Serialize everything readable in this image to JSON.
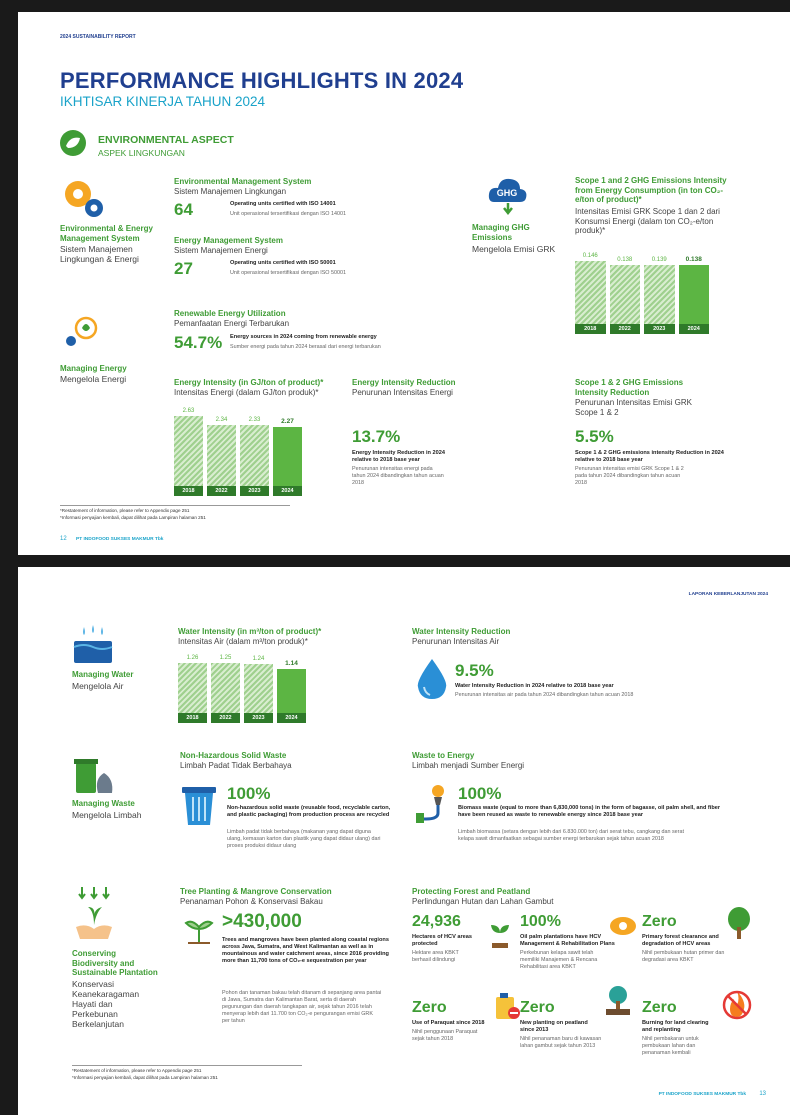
{
  "page1": {
    "header": "2024 SUSTAINABILITY REPORT",
    "title": "PERFORMANCE HIGHLIGHTS IN 2024",
    "subtitle": "IKHTISAR KINERJA TAHUN 2024",
    "section": {
      "title": "ENVIRONMENTAL ASPECT",
      "subtitle": "ASPEK LINGKUNGAN"
    },
    "ems_label": {
      "title": "Environmental & Energy Management System",
      "subtitle": "Sistem Manajemen Lingkungan & Energi"
    },
    "ems": {
      "title": "Environmental Management System",
      "subtitle": "Sistem Manajemen Lingkungan",
      "value": "64",
      "desc": "Operating units certified with ISO 14001",
      "desc_id": "Unit operasional tersertifikasi dengan ISO 14001"
    },
    "enms": {
      "title": "Energy Management System",
      "subtitle": "Sistem Manajemen Energi",
      "value": "27",
      "desc": "Operating units certified with ISO 50001",
      "desc_id": "Unit operasional tersertifikasi dengan ISO 50001"
    },
    "ghg_icon": "GHG",
    "ghg_label": {
      "title": "Managing GHG Emissions",
      "subtitle": "Mengelola Emisi GRK"
    },
    "ghg_chart": {
      "title": "Scope 1 and 2 GHG Emissions Intensity from Energy Consumption (in ton CO₂-e/ton of product)*",
      "subtitle": "Intensitas Emisi GRK Scope 1 dan 2 dari Konsumsi Energi (dalam ton CO₂-e/ton produk)*",
      "categories": [
        "2018",
        "2022",
        "2023",
        "2024"
      ],
      "values": [
        0.146,
        0.138,
        0.139,
        0.138
      ]
    },
    "renewable": {
      "title": "Renewable Energy Utilization",
      "subtitle": "Pemanfaatan Energi Terbarukan",
      "value": "54.7%",
      "desc": "Energy sources in 2024 coming from renewable energy",
      "desc_id": "Sumber energi pada tahun 2024 berasal dari energi terbarukan"
    },
    "energy_label": {
      "title": "Managing Energy",
      "subtitle": "Mengelola Energi"
    },
    "energy_chart": {
      "title": "Energy Intensity (in GJ/ton of product)*",
      "subtitle": "Intensitas Energi (dalam GJ/ton produk)*",
      "categories": [
        "2018",
        "2022",
        "2023",
        "2024"
      ],
      "values": [
        2.63,
        2.34,
        2.33,
        2.27
      ]
    },
    "energy_reduction": {
      "title": "Energy Intensity Reduction",
      "subtitle": "Penurunan Intensitas Energi",
      "value": "13.7%",
      "desc": "Energy Intensity Reduction in 2024 relative to 2018 base year",
      "desc_id": "Penurunan intensitas energi pada tahun 2024 dibandingkan tahun acuan 2018"
    },
    "ghg_reduction": {
      "title": "Scope 1 & 2 GHG Emissions Intensity Reduction",
      "subtitle": "Penurunan Intensitas Emisi GRK Scope 1 & 2",
      "value": "5.5%",
      "desc": "Scope 1 & 2 GHG emissions intensity Reduction in 2024 relative to 2018 base year",
      "desc_id": "Penurunan intensitas emisi GRK Scope 1 & 2 pada tahun 2024 dibandingkan tahun acuan 2018"
    },
    "footnote": "*Restatement of information, please refer to Appendix page 251",
    "footnote_id": "*Informasi penyajian kembali, dapat dilihat pada Lampiran halaman 251",
    "page_number": "12",
    "company": "PT INDOFOOD SUKSES MAKMUR Tbk"
  },
  "page2": {
    "header": "LAPORAN KEBERLANJUTAN 2024",
    "water_label": {
      "title": "Managing Water",
      "subtitle": "Mengelola Air"
    },
    "water_chart": {
      "title": "Water Intensity (in m³/ton of product)*",
      "subtitle": "Intensitas Air (dalam m³/ton produk)*",
      "categories": [
        "2018",
        "2022",
        "2023",
        "2024"
      ],
      "values": [
        1.26,
        1.25,
        1.24,
        1.14
      ]
    },
    "water_reduction": {
      "title": "Water Intensity Reduction",
      "subtitle": "Penurunan Intensitas Air",
      "value": "9.5%",
      "desc": "Water Intensity Reduction in 2024 relative to 2018 base year",
      "desc_id": "Penurunan intensitas air pada tahun 2024 dibandingkan tahun acuan 2018"
    },
    "waste_label": {
      "title": "Managing Waste",
      "subtitle": "Mengelola Limbah"
    },
    "non_hazardous": {
      "title": "Non-Hazardous Solid Waste",
      "subtitle": "Limbah Padat Tidak Berbahaya",
      "value": "100%",
      "desc": "Non-hazardous solid waste (reusable food, recyclable carton, and plastic packaging) from production process are recycled",
      "desc_id": "Limbah padat tidak berbahaya (makanan yang dapat diguna ulang, kemasan karton dan plastik yang dapat didaur ulang) dari proses produksi didaur ulang"
    },
    "waste_to_energy": {
      "title": "Waste to Energy",
      "subtitle": "Limbah menjadi Sumber Energi",
      "value": "100%",
      "desc": "Biomass waste (equal to more than 6,830,000 tons) in the form of bagasse, oil palm shell, and fiber have been reused as waste to renewable energy since 2018 base year",
      "desc_id": "Limbah biomassa (setara dengan lebih dari 6.830.000 ton) dari serat tebu, cangkang dan serat kelapa sawit dimanfaatkan sebagai sumber energi terbarukan sejak tahun acuan 2018"
    },
    "biodiversity_label": {
      "title": "Conserving Biodiversity and Sustainable Plantation",
      "subtitle": "Konservasi Keanekaragaman Hayati dan Perkebunan Berkelanjutan"
    },
    "tree_planting": {
      "title": "Tree Planting & Mangrove Conservation",
      "subtitle": "Penanaman Pohon & Konservasi Bakau",
      "value": ">430,000",
      "desc": "Trees and mangroves have been planted along coastal regions across Java, Sumatra, and West Kalimantan as well as in mountainous and water catchment areas, since 2016 providing more than 11,700 tons of CO₂-e sequestration per year",
      "desc_id": "Pohon dan tanaman bakau telah ditanam di sepanjang area pantai di Jawa, Sumatra dan Kalimantan Barat, serta di daerah pegunungan dan daerah tangkapan air, sejak tahun 2016 telah menyerap lebih dari 11.700 ton CO₂-e pengurangan emisi GRK per tahun"
    },
    "forest": {
      "title": "Protecting Forest and Peatland",
      "subtitle": "Perlindungan Hutan dan Lahan Gambut",
      "items": [
        {
          "value": "24,936",
          "desc": "Hectares of HCV areas protected",
          "desc_id": "Hektare area KBKT berhasil dilindungi"
        },
        {
          "value": "100%",
          "desc": "Oil palm plantations have HCV Management & Rehabilitation Plans",
          "desc_id": "Perkebunan kelapa sawit telah memiliki Manajemen & Rencana Rehabilitasi area KBKT"
        },
        {
          "value": "Zero",
          "desc": "Primary forest clearance and degradation of HCV areas",
          "desc_id": "Nihil pembukaan hutan primer dan degradasi area KBKT"
        },
        {
          "value": "Zero",
          "desc": "Use of Paraquat since 2018",
          "desc_id": "Nihil penggunaan Paraquat sejak tahun 2018"
        },
        {
          "value": "Zero",
          "desc": "New planting on peatland since 2013",
          "desc_id": "Nihil penanaman baru di kawasan lahan gambut sejak tahun 2013"
        },
        {
          "value": "Zero",
          "desc": "Burning for land clearing and replanting",
          "desc_id": "Nihil pembakaran untuk pembukaan lahan dan penanaman kembali"
        }
      ]
    },
    "footnote": "*Restatement of information, please refer to Appendix page 251",
    "footnote_id": "*Informasi penyajian kembali, dapat dilihat pada Lampiran halaman 251",
    "company": "PT INDOFOOD SUKSES MAKMUR Tbk",
    "page_number": "13"
  }
}
